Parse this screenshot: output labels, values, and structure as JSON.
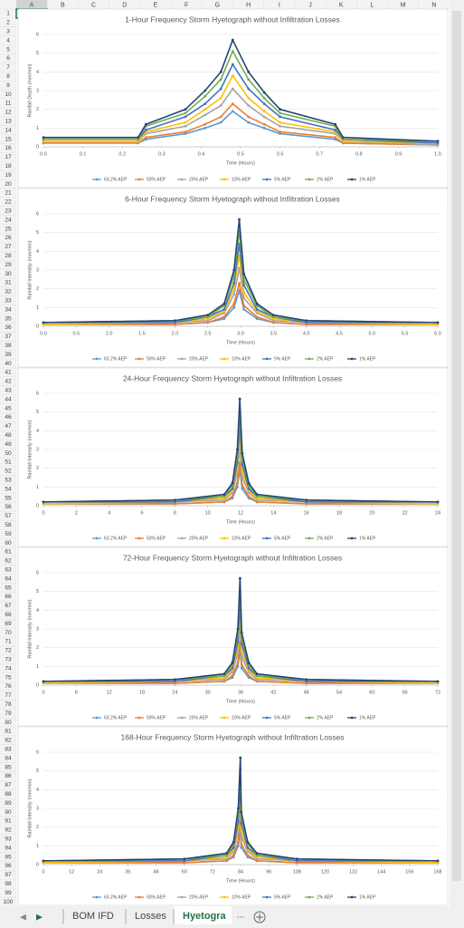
{
  "column_headers": [
    "A",
    "B",
    "C",
    "D",
    "E",
    "F",
    "G",
    "H",
    "I",
    "J",
    "K",
    "L",
    "M",
    "N"
  ],
  "row_numbers": [
    1,
    2,
    3,
    4,
    5,
    6,
    7,
    8,
    9,
    10,
    11,
    12,
    13,
    14,
    15,
    16,
    17,
    18,
    19,
    20,
    21,
    22,
    23,
    24,
    25,
    26,
    27,
    28,
    29,
    30,
    31,
    32,
    33,
    34,
    35,
    36,
    37,
    38,
    39,
    40,
    41,
    42,
    43,
    44,
    45,
    46,
    47,
    48,
    49,
    50,
    51,
    52,
    53,
    54,
    55,
    56,
    57,
    58,
    59,
    60,
    61,
    62,
    63,
    64,
    65,
    66,
    67,
    68,
    69,
    70,
    71,
    72,
    73,
    74,
    75,
    76,
    77,
    78,
    79,
    80,
    81,
    82,
    83,
    84,
    85,
    86,
    87,
    88,
    89,
    90,
    91,
    92,
    93,
    94,
    95,
    96,
    97,
    98,
    99,
    100
  ],
  "sheet_tabs": [
    "BOM IFD",
    "Losses",
    "Hyetogra"
  ],
  "tab_overflow": "...",
  "chart_data": [
    {
      "type": "line",
      "title": "1-Hour Frequency Storm Hyetograph without Infiltration Losses",
      "x_label": "Time (Hours)",
      "y_label": "Rainfall Depth (mm/min)",
      "x": [
        0,
        0.24,
        0.26,
        0.36,
        0.41,
        0.45,
        0.48,
        0.52,
        0.56,
        0.6,
        0.74,
        0.76,
        1.0
      ],
      "xlim": [
        0,
        1
      ],
      "xticks": [
        {
          "value": 0,
          "label": "0.0"
        },
        0.1,
        0.2,
        0.3,
        0.4,
        0.5,
        0.6,
        0.7,
        0.8,
        0.9,
        {
          "value": 1,
          "label": "1.0"
        }
      ],
      "ylim": [
        0,
        6
      ],
      "yticks": [
        0,
        1,
        2,
        3,
        4,
        5,
        6
      ],
      "grid": true,
      "legend": "bottom",
      "series": [
        {
          "name": "63.2% AEP",
          "color": "#5b9bd5",
          "values": [
            0.2,
            0.2,
            0.4,
            0.7,
            1.0,
            1.3,
            1.9,
            1.3,
            1.0,
            0.7,
            0.4,
            0.2,
            0.1
          ]
        },
        {
          "name": "50% AEP",
          "color": "#ed7d31",
          "values": [
            0.2,
            0.2,
            0.5,
            0.8,
            1.2,
            1.6,
            2.3,
            1.6,
            1.2,
            0.8,
            0.5,
            0.2,
            0.1
          ]
        },
        {
          "name": "20% AEP",
          "color": "#a5a5a5",
          "values": [
            0.3,
            0.3,
            0.7,
            1.1,
            1.7,
            2.2,
            3.1,
            2.2,
            1.6,
            1.1,
            0.7,
            0.3,
            0.1
          ]
        },
        {
          "name": "10% AEP",
          "color": "#ffc000",
          "values": [
            0.3,
            0.3,
            0.8,
            1.3,
            2.0,
            2.6,
            3.8,
            2.6,
            1.9,
            1.3,
            0.8,
            0.3,
            0.2
          ]
        },
        {
          "name": "5% AEP",
          "color": "#4472c4",
          "values": [
            0.4,
            0.4,
            0.9,
            1.6,
            2.3,
            3.1,
            4.4,
            3.1,
            2.3,
            1.6,
            0.9,
            0.4,
            0.2
          ]
        },
        {
          "name": "2% AEP",
          "color": "#70ad47",
          "values": [
            0.4,
            0.4,
            1.1,
            1.8,
            2.7,
            3.6,
            5.1,
            3.6,
            2.6,
            1.8,
            1.1,
            0.4,
            0.3
          ]
        },
        {
          "name": "1% AEP",
          "color": "#264478",
          "values": [
            0.5,
            0.5,
            1.2,
            2.0,
            3.0,
            4.0,
            5.7,
            4.0,
            2.9,
            2.0,
            1.2,
            0.5,
            0.3
          ]
        }
      ]
    },
    {
      "type": "line",
      "title": "6-Hour Frequency Storm Hyetograph without Infiltration Losses",
      "x_label": "Time (Hours)",
      "y_label": "Rainfall Intensity (mm/min)",
      "x": [
        0,
        2,
        2.5,
        2.75,
        2.9,
        2.98,
        3.05,
        3.25,
        3.5,
        4,
        6
      ],
      "xlim": [
        0,
        6
      ],
      "xticks": [
        {
          "value": 0,
          "label": "0.0"
        },
        0.5,
        {
          "value": 1,
          "label": "1.0"
        },
        1.5,
        {
          "value": 2,
          "label": "2.0"
        },
        2.5,
        {
          "value": 3,
          "label": "3.0"
        },
        3.5,
        {
          "value": 4,
          "label": "4.0"
        },
        4.5,
        {
          "value": 5,
          "label": "5.0"
        },
        5.5,
        {
          "value": 6,
          "label": "6.0"
        }
      ],
      "ylim": [
        0,
        6
      ],
      "yticks": [
        0,
        1,
        2,
        3,
        4,
        5,
        6
      ],
      "grid": true,
      "legend": "bottom",
      "series": [
        {
          "name": "63.2% AEP",
          "color": "#5b9bd5",
          "values": [
            0.1,
            0.1,
            0.2,
            0.4,
            1.0,
            1.9,
            0.9,
            0.4,
            0.2,
            0.1,
            0.1
          ]
        },
        {
          "name": "50% AEP",
          "color": "#ed7d31",
          "values": [
            0.1,
            0.1,
            0.2,
            0.5,
            1.2,
            2.3,
            1.1,
            0.5,
            0.2,
            0.1,
            0.1
          ]
        },
        {
          "name": "20% AEP",
          "color": "#a5a5a5",
          "values": [
            0.1,
            0.2,
            0.3,
            0.7,
            1.7,
            3.1,
            1.5,
            0.7,
            0.3,
            0.2,
            0.1
          ]
        },
        {
          "name": "10% AEP",
          "color": "#ffc000",
          "values": [
            0.1,
            0.2,
            0.4,
            0.8,
            2.0,
            3.8,
            1.8,
            0.8,
            0.4,
            0.2,
            0.1
          ]
        },
        {
          "name": "5% AEP",
          "color": "#4472c4",
          "values": [
            0.2,
            0.2,
            0.5,
            0.9,
            2.3,
            4.4,
            2.2,
            0.9,
            0.5,
            0.2,
            0.2
          ]
        },
        {
          "name": "2% AEP",
          "color": "#70ad47",
          "values": [
            0.2,
            0.3,
            0.5,
            1.1,
            2.7,
            5.1,
            2.5,
            1.1,
            0.5,
            0.3,
            0.2
          ]
        },
        {
          "name": "1% AEP",
          "color": "#264478",
          "values": [
            0.2,
            0.3,
            0.6,
            1.2,
            3.0,
            5.7,
            2.8,
            1.2,
            0.6,
            0.3,
            0.2
          ]
        }
      ]
    },
    {
      "type": "line",
      "title": "24-Hour Frequency Storm Hyetograph without Infiltration Losses",
      "x_label": "Time (Hours)",
      "y_label": "Rainfall Intensity (mm/min)",
      "x": [
        0,
        8,
        11,
        11.5,
        11.8,
        11.95,
        12.1,
        12.5,
        13,
        16,
        24
      ],
      "xlim": [
        0,
        24
      ],
      "xticks": [
        0,
        2,
        4,
        6,
        8,
        10,
        12,
        14,
        16,
        18,
        20,
        22,
        24
      ],
      "ylim": [
        0,
        6
      ],
      "yticks": [
        0,
        1,
        2,
        3,
        4,
        5,
        6
      ],
      "grid": true,
      "legend": "bottom",
      "series": [
        {
          "name": "63.2% AEP",
          "color": "#5b9bd5",
          "values": [
            0.1,
            0.1,
            0.2,
            0.4,
            1.0,
            1.9,
            0.9,
            0.4,
            0.2,
            0.1,
            0.1
          ]
        },
        {
          "name": "50% AEP",
          "color": "#ed7d31",
          "values": [
            0.1,
            0.1,
            0.2,
            0.5,
            1.2,
            2.3,
            1.1,
            0.5,
            0.2,
            0.1,
            0.1
          ]
        },
        {
          "name": "20% AEP",
          "color": "#a5a5a5",
          "values": [
            0.1,
            0.2,
            0.3,
            0.7,
            1.7,
            3.1,
            1.5,
            0.7,
            0.3,
            0.2,
            0.1
          ]
        },
        {
          "name": "10% AEP",
          "color": "#ffc000",
          "values": [
            0.1,
            0.2,
            0.4,
            0.8,
            2.0,
            3.8,
            1.8,
            0.8,
            0.4,
            0.2,
            0.1
          ]
        },
        {
          "name": "5% AEP",
          "color": "#4472c4",
          "values": [
            0.2,
            0.2,
            0.5,
            0.9,
            2.3,
            4.4,
            2.2,
            0.9,
            0.5,
            0.2,
            0.2
          ]
        },
        {
          "name": "2% AEP",
          "color": "#70ad47",
          "values": [
            0.2,
            0.3,
            0.5,
            1.1,
            2.7,
            5.1,
            2.5,
            1.1,
            0.5,
            0.3,
            0.2
          ]
        },
        {
          "name": "1% AEP",
          "color": "#264478",
          "values": [
            0.2,
            0.3,
            0.6,
            1.2,
            3.0,
            5.7,
            2.8,
            1.2,
            0.6,
            0.3,
            0.2
          ]
        }
      ]
    },
    {
      "type": "line",
      "title": "72-Hour Frequency Storm Hyetograph without Infiltration Losses",
      "x_label": "Time (Hours)",
      "y_label": "Rainfall Intensity (mm/min)",
      "x": [
        0,
        24,
        33,
        34.5,
        35.5,
        35.9,
        36.2,
        37.5,
        39,
        48,
        72
      ],
      "xlim": [
        0,
        72
      ],
      "xticks": [
        0,
        6,
        12,
        18,
        24,
        30,
        36,
        42,
        48,
        54,
        60,
        66,
        72
      ],
      "ylim": [
        0,
        6
      ],
      "yticks": [
        0,
        1,
        2,
        3,
        4,
        5,
        6
      ],
      "grid": true,
      "legend": "bottom",
      "series": [
        {
          "name": "63.2% AEP",
          "color": "#5b9bd5",
          "values": [
            0.1,
            0.1,
            0.2,
            0.4,
            1.0,
            1.9,
            0.9,
            0.4,
            0.2,
            0.1,
            0.1
          ]
        },
        {
          "name": "50% AEP",
          "color": "#ed7d31",
          "values": [
            0.1,
            0.1,
            0.2,
            0.5,
            1.2,
            2.3,
            1.1,
            0.5,
            0.2,
            0.1,
            0.1
          ]
        },
        {
          "name": "20% AEP",
          "color": "#a5a5a5",
          "values": [
            0.1,
            0.2,
            0.3,
            0.7,
            1.7,
            3.1,
            1.5,
            0.7,
            0.3,
            0.2,
            0.1
          ]
        },
        {
          "name": "10% AEP",
          "color": "#ffc000",
          "values": [
            0.1,
            0.2,
            0.4,
            0.8,
            2.0,
            3.8,
            1.8,
            0.8,
            0.4,
            0.2,
            0.1
          ]
        },
        {
          "name": "5% AEP",
          "color": "#4472c4",
          "values": [
            0.2,
            0.2,
            0.5,
            0.9,
            2.3,
            4.4,
            2.2,
            0.9,
            0.5,
            0.2,
            0.2
          ]
        },
        {
          "name": "2% AEP",
          "color": "#70ad47",
          "values": [
            0.2,
            0.3,
            0.5,
            1.1,
            2.7,
            5.1,
            2.5,
            1.1,
            0.5,
            0.3,
            0.2
          ]
        },
        {
          "name": "1% AEP",
          "color": "#264478",
          "values": [
            0.2,
            0.3,
            0.6,
            1.2,
            3.0,
            5.7,
            2.8,
            1.2,
            0.6,
            0.3,
            0.2
          ]
        }
      ]
    },
    {
      "type": "line",
      "title": "168-Hour Frequency Storm Hyetograph without Infiltration Losses",
      "x_label": "Time (Hours)",
      "y_label": "Rainfall Intensity (mm/min)",
      "x": [
        0,
        60,
        78,
        81,
        83,
        83.9,
        84.3,
        87,
        91,
        108,
        168
      ],
      "xlim": [
        0,
        168
      ],
      "xticks": [
        0,
        12,
        24,
        36,
        48,
        60,
        72,
        84,
        96,
        108,
        120,
        132,
        144,
        156,
        168
      ],
      "ylim": [
        0,
        6
      ],
      "yticks": [
        0,
        1,
        2,
        3,
        4,
        5,
        6
      ],
      "grid": true,
      "legend": "bottom",
      "series": [
        {
          "name": "63.2% AEP",
          "color": "#5b9bd5",
          "values": [
            0.1,
            0.1,
            0.2,
            0.4,
            1.0,
            1.9,
            0.9,
            0.4,
            0.2,
            0.1,
            0.1
          ]
        },
        {
          "name": "50% AEP",
          "color": "#ed7d31",
          "values": [
            0.1,
            0.1,
            0.2,
            0.5,
            1.2,
            2.3,
            1.1,
            0.5,
            0.2,
            0.1,
            0.1
          ]
        },
        {
          "name": "20% AEP",
          "color": "#a5a5a5",
          "values": [
            0.1,
            0.2,
            0.3,
            0.7,
            1.7,
            3.1,
            1.5,
            0.7,
            0.3,
            0.2,
            0.1
          ]
        },
        {
          "name": "10% AEP",
          "color": "#ffc000",
          "values": [
            0.1,
            0.2,
            0.4,
            0.8,
            2.0,
            3.8,
            1.8,
            0.8,
            0.4,
            0.2,
            0.1
          ]
        },
        {
          "name": "5% AEP",
          "color": "#4472c4",
          "values": [
            0.2,
            0.2,
            0.5,
            0.9,
            2.3,
            4.4,
            2.2,
            0.9,
            0.5,
            0.2,
            0.2
          ]
        },
        {
          "name": "2% AEP",
          "color": "#70ad47",
          "values": [
            0.2,
            0.3,
            0.5,
            1.1,
            2.7,
            5.1,
            2.5,
            1.1,
            0.5,
            0.3,
            0.2
          ]
        },
        {
          "name": "1% AEP",
          "color": "#264478",
          "values": [
            0.2,
            0.3,
            0.6,
            1.2,
            3.0,
            5.7,
            2.8,
            1.2,
            0.6,
            0.3,
            0.2
          ]
        }
      ]
    }
  ]
}
